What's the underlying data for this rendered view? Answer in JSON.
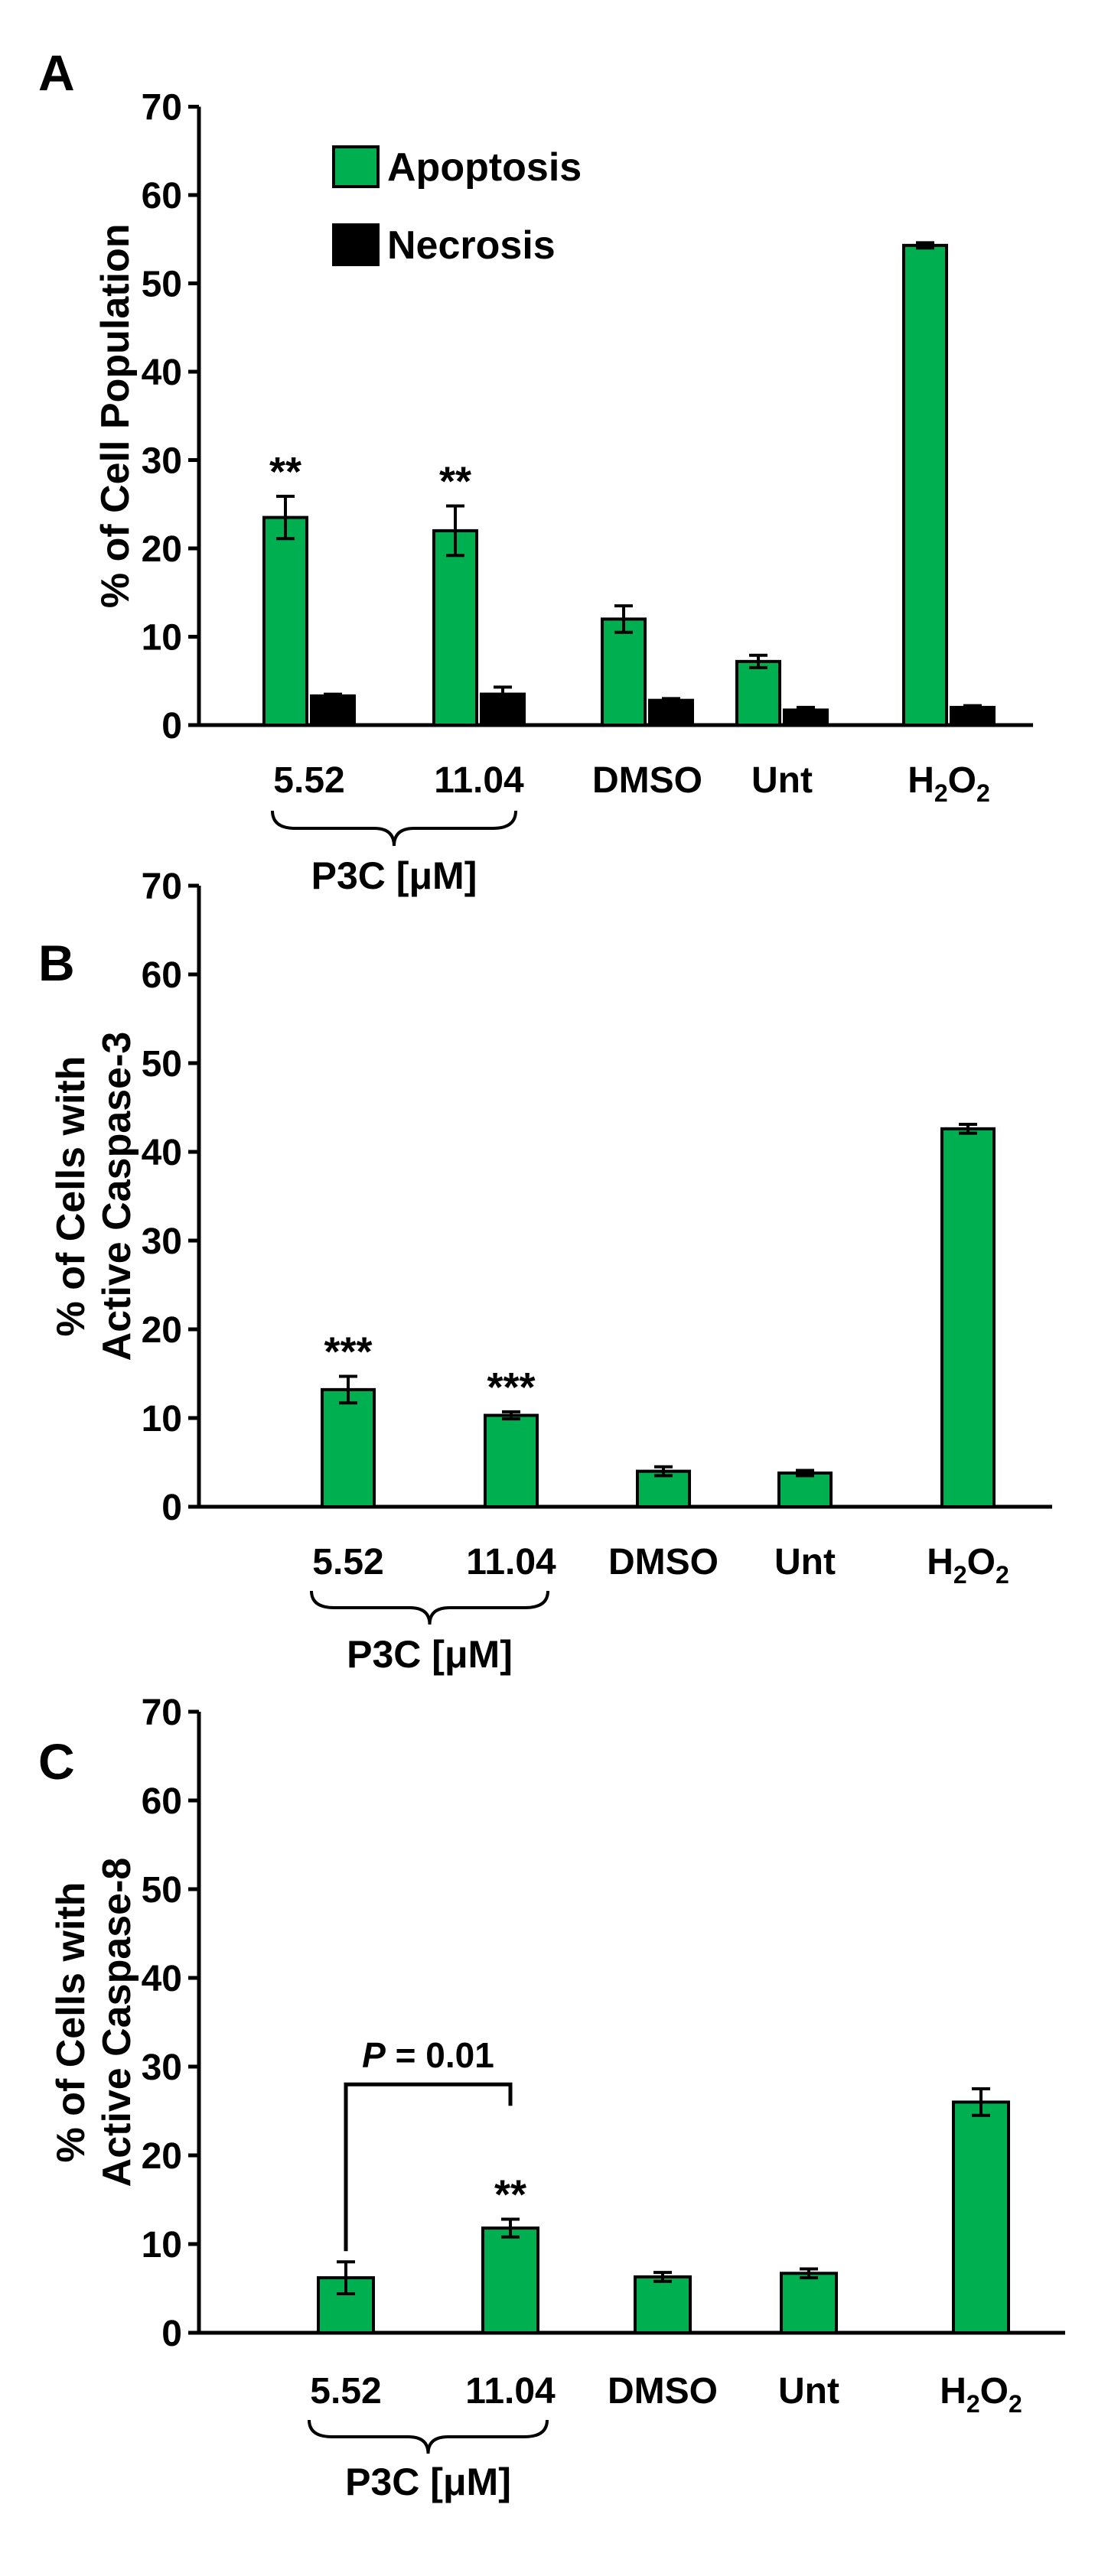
{
  "chart_data": [
    {
      "panel": "A",
      "type": "bar",
      "categories": [
        "5.52",
        "11.04",
        "DMSO",
        "Unt",
        "H2O2"
      ],
      "series": [
        {
          "name": "Apoptosis",
          "color": "#00b050",
          "values": [
            23.5,
            22.0,
            12.0,
            7.2,
            54.3
          ],
          "errors": [
            2.4,
            2.8,
            1.5,
            0.7,
            0.3
          ]
        },
        {
          "name": "Necrosis",
          "color": "#000000",
          "values": [
            3.3,
            3.5,
            2.8,
            1.7,
            2.0
          ],
          "errors": [
            0.2,
            0.8,
            0.2,
            0.3,
            0.2
          ]
        }
      ],
      "significance": [
        {
          "category": "5.52",
          "series": "Apoptosis",
          "text": "**"
        },
        {
          "category": "11.04",
          "series": "Apoptosis",
          "text": "**"
        }
      ],
      "ylabel": "% of Cell Population",
      "ylabel_lines": [
        "% of Cell Population"
      ],
      "ylim": [
        0,
        70
      ],
      "yticks": [
        0,
        10,
        20,
        30,
        40,
        50,
        60,
        70
      ],
      "group_label": "P3C [μM]",
      "legend": "top-left"
    },
    {
      "panel": "B",
      "type": "bar",
      "categories": [
        "5.52",
        "11.04",
        "DMSO",
        "Unt",
        "H2O2"
      ],
      "series": [
        {
          "color": "#00b050",
          "values": [
            13.2,
            10.3,
            4.0,
            3.8,
            42.6
          ],
          "errors": [
            1.5,
            0.4,
            0.5,
            0.3,
            0.5
          ]
        }
      ],
      "significance": [
        {
          "category": "5.52",
          "text": "***"
        },
        {
          "category": "11.04",
          "text": "***"
        }
      ],
      "ylabel": "% of Cells with Active Caspase-3",
      "ylabel_lines": [
        "% of Cells with",
        "Active Caspase-3"
      ],
      "ylim": [
        0,
        70
      ],
      "yticks": [
        0,
        10,
        20,
        30,
        40,
        50,
        60,
        70
      ],
      "group_label": "P3C [μM]"
    },
    {
      "panel": "C",
      "type": "bar",
      "categories": [
        "5.52",
        "11.04",
        "DMSO",
        "Unt",
        "H2O2"
      ],
      "series": [
        {
          "color": "#00b050",
          "values": [
            6.2,
            11.8,
            6.3,
            6.7,
            26.0
          ],
          "errors": [
            1.8,
            1.0,
            0.5,
            0.5,
            1.5
          ]
        }
      ],
      "significance": [
        {
          "category": "11.04",
          "text": "**"
        }
      ],
      "bracket": {
        "from": "5.52",
        "to": "11.04",
        "label_italic": "P",
        "label_rest": " = 0.01"
      },
      "ylabel": "% of Cells with Active Caspase-8",
      "ylabel_lines": [
        "% of Cells with",
        "Active Caspase-8"
      ],
      "ylim": [
        0,
        70
      ],
      "yticks": [
        0,
        10,
        20,
        30,
        40,
        50,
        60,
        70
      ],
      "group_label": "P3C [μM]"
    }
  ]
}
